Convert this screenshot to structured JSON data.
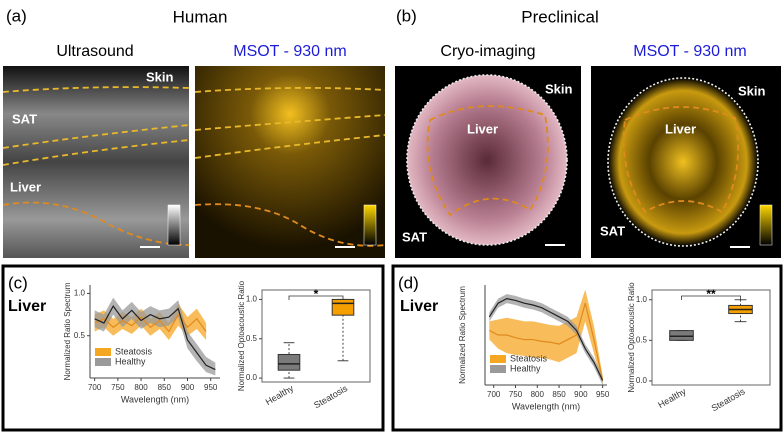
{
  "panels": [
    {
      "label": "(a)",
      "title": "Human",
      "images": [
        {
          "title": "Ultrasound",
          "annotations": [
            "Skin",
            "SAT",
            "Liver"
          ]
        },
        {
          "title": "MSOT - 930 nm"
        }
      ]
    },
    {
      "label": "(b)",
      "title": "Preclinical",
      "images": [
        {
          "title": "Cryo-imaging",
          "annotations": [
            "Skin",
            "Liver",
            "SAT"
          ]
        },
        {
          "title": "MSOT - 930 nm",
          "annotations": [
            "Skin",
            "Liver",
            "SAT"
          ]
        }
      ]
    },
    {
      "label": "(c)",
      "organ": "Liver"
    },
    {
      "label": "(d)",
      "organ": "Liver"
    }
  ],
  "chart_data": [
    {
      "type": "line",
      "xlabel": "Wavelength (nm)",
      "ylabel": "Normalized Ratio Spectrum",
      "x": [
        700,
        720,
        740,
        760,
        780,
        800,
        820,
        840,
        860,
        880,
        900,
        920,
        940,
        960
      ],
      "xlim": [
        690,
        970
      ],
      "xticks": [
        700,
        750,
        800,
        850,
        900,
        950
      ],
      "ylim": [
        0,
        1.1
      ],
      "yticks": [
        0.5,
        {
          "value": 1,
          "label": "1.0"
        }
      ],
      "series": [
        {
          "name": "Steatosis",
          "color": "#f5a623",
          "values": [
            0.65,
            0.7,
            0.6,
            0.68,
            0.62,
            0.72,
            0.6,
            0.68,
            0.55,
            0.75,
            0.6,
            0.7,
            0.55,
            null
          ],
          "lower": [
            0.55,
            0.6,
            0.5,
            0.58,
            0.52,
            0.62,
            0.5,
            0.58,
            0.45,
            0.62,
            0.5,
            0.58,
            0.45,
            null
          ],
          "upper": [
            0.75,
            0.8,
            0.7,
            0.78,
            0.72,
            0.82,
            0.7,
            0.78,
            0.65,
            0.88,
            0.72,
            0.82,
            0.65,
            null
          ]
        },
        {
          "name": "Healthy",
          "color": "#9a9a9a",
          "values": [
            0.7,
            0.65,
            0.85,
            0.7,
            0.8,
            0.68,
            0.75,
            0.7,
            0.72,
            0.82,
            0.45,
            0.3,
            0.15,
            0.1
          ],
          "lower": [
            0.6,
            0.55,
            0.75,
            0.6,
            0.7,
            0.58,
            0.65,
            0.6,
            0.62,
            0.72,
            0.35,
            0.2,
            0.07,
            0.03
          ],
          "upper": [
            0.8,
            0.75,
            0.95,
            0.8,
            0.9,
            0.78,
            0.85,
            0.8,
            0.82,
            0.92,
            0.55,
            0.4,
            0.25,
            0.18
          ]
        }
      ]
    },
    {
      "type": "box",
      "ylabel": "Normalized Optoacoustic Ratio",
      "categories": [
        "Healthy",
        "Steatosis"
      ],
      "ylim": [
        -0.05,
        1.12
      ],
      "yticks": [
        {
          "value": 0,
          "label": "0.0"
        },
        0.5,
        {
          "value": 1,
          "label": "1.0"
        }
      ],
      "annotation": "*",
      "boxes": [
        {
          "color": "#7a7a7a",
          "min": 0.0,
          "q1": 0.1,
          "median": 0.18,
          "q3": 0.3,
          "max": 0.45
        },
        {
          "color": "#f5a000",
          "min": 0.22,
          "q1": 0.8,
          "median": 0.95,
          "q3": 1.0,
          "max": 1.0
        }
      ]
    },
    {
      "type": "line",
      "xlabel": "Wavelength (nm)",
      "ylabel": "Normalized Ratio Spectrum",
      "x": [
        690,
        710,
        730,
        750,
        770,
        790,
        810,
        830,
        850,
        870,
        890,
        910,
        930,
        950
      ],
      "xlim": [
        680,
        960
      ],
      "xticks": [
        700,
        750,
        800,
        850,
        900,
        950
      ],
      "ylim": [
        0,
        1.1
      ],
      "series": [
        {
          "name": "Steatosis",
          "color": "#f5a623",
          "values": [
            0.6,
            0.55,
            0.55,
            0.52,
            0.5,
            0.5,
            0.48,
            0.47,
            0.45,
            0.5,
            0.55,
            0.9,
            0.5,
            0.05
          ],
          "lower": [
            0.5,
            0.4,
            0.35,
            0.33,
            0.32,
            0.3,
            0.3,
            0.28,
            0.25,
            0.3,
            0.35,
            0.7,
            0.35,
            0.0
          ],
          "upper": [
            0.7,
            0.72,
            0.74,
            0.72,
            0.7,
            0.7,
            0.68,
            0.66,
            0.65,
            0.7,
            0.75,
            1.05,
            0.65,
            0.1
          ]
        },
        {
          "name": "Healthy",
          "color": "#9a9a9a",
          "values": [
            0.75,
            0.9,
            0.95,
            0.93,
            0.9,
            0.88,
            0.85,
            0.8,
            0.75,
            0.7,
            0.6,
            0.4,
            0.25,
            0.05
          ],
          "lower": [
            0.7,
            0.85,
            0.9,
            0.88,
            0.85,
            0.83,
            0.8,
            0.75,
            0.7,
            0.65,
            0.55,
            0.35,
            0.2,
            0.0
          ],
          "upper": [
            0.8,
            0.95,
            1.0,
            0.98,
            0.95,
            0.93,
            0.9,
            0.85,
            0.8,
            0.75,
            0.65,
            0.45,
            0.3,
            0.1
          ]
        }
      ]
    },
    {
      "type": "box",
      "ylabel": "Normalized Optoacoustic Ratio",
      "categories": [
        "Healthy",
        "Steatosis"
      ],
      "ylim": [
        -0.05,
        1.12
      ],
      "yticks": [
        {
          "value": 0,
          "label": "0.0"
        },
        0.5,
        {
          "value": 1,
          "label": "1.0"
        }
      ],
      "annotation": "**",
      "boxes": [
        {
          "color": "#7a7a7a",
          "min": 0.5,
          "q1": 0.5,
          "median": 0.55,
          "q3": 0.62,
          "max": 0.62
        },
        {
          "color": "#f5a000",
          "min": 0.73,
          "q1": 0.83,
          "median": 0.88,
          "q3": 0.93,
          "max": 1.0
        }
      ]
    }
  ]
}
